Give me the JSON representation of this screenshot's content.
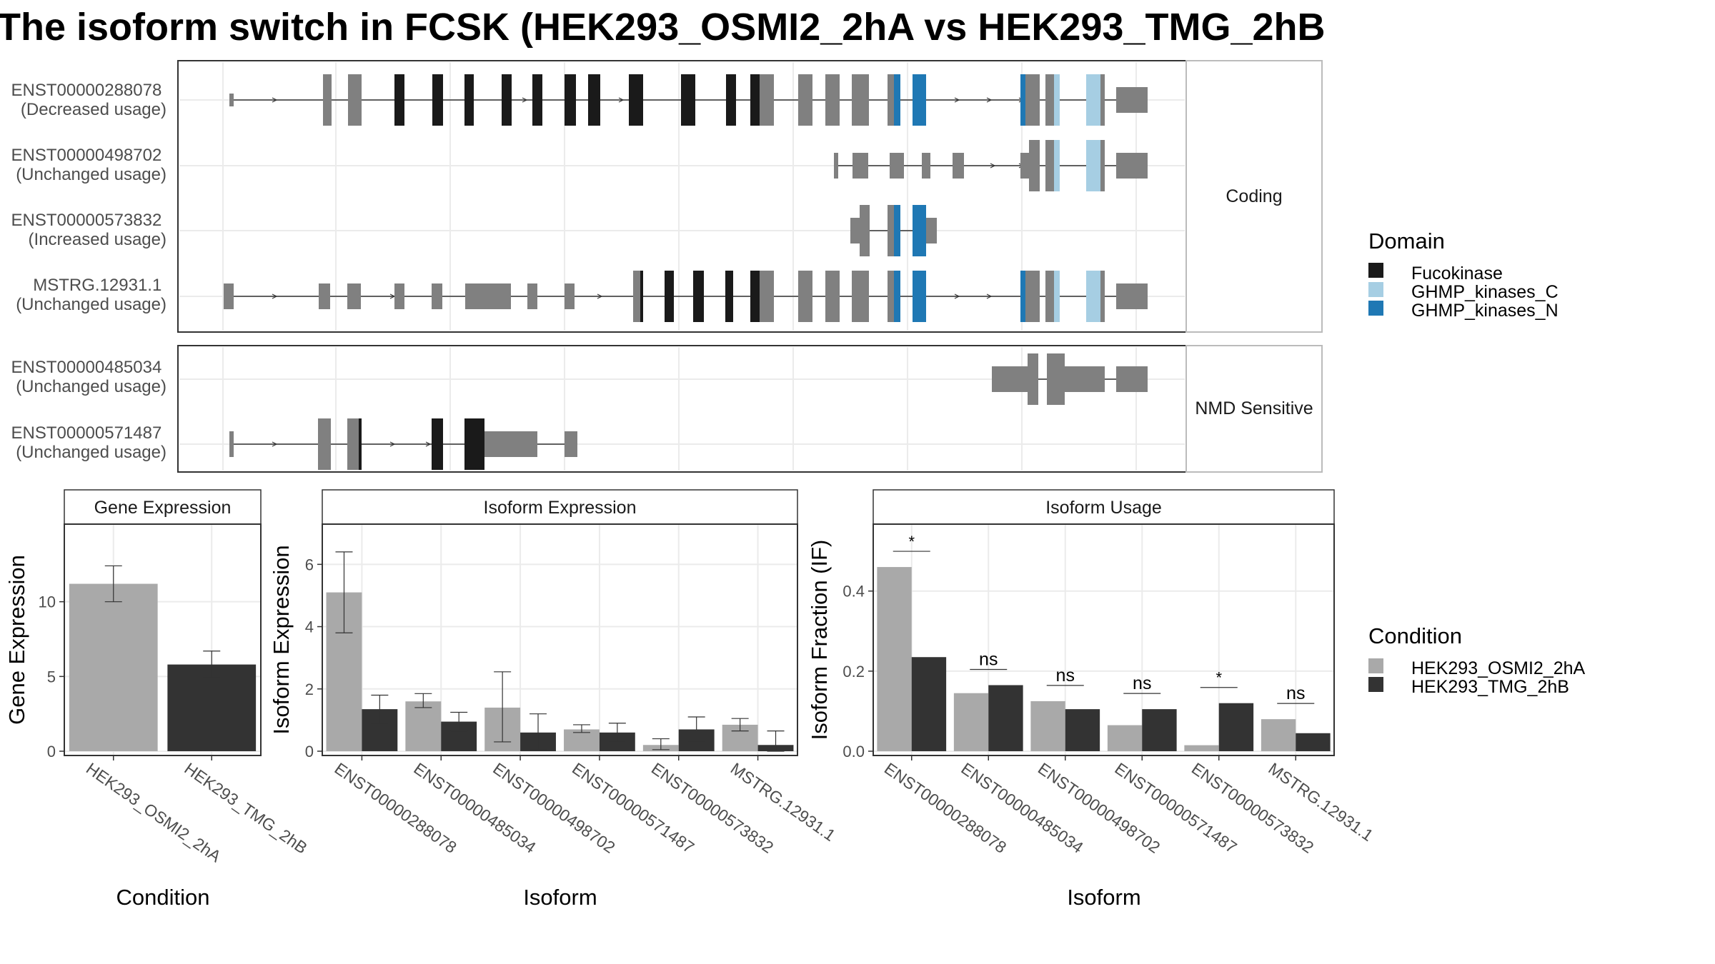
{
  "title": "The isoform switch in FCSK (HEK293_OSMI2_2hA vs HEK293_TMG_2hB",
  "colors": {
    "fucokinase": "#1a1a1a",
    "ghmp_c": "#a6cee3",
    "ghmp_n": "#1f78b4",
    "exon": "#808080",
    "cond1": "#a9a9a9",
    "cond2": "#333333"
  },
  "structure": {
    "facets": [
      "Coding",
      "NMD Sensitive"
    ],
    "transcripts": [
      {
        "id": "ENST00000288078",
        "usage": "(Decreased usage)",
        "facet": "Coding"
      },
      {
        "id": "ENST00000498702",
        "usage": "(Unchanged usage)",
        "facet": "Coding"
      },
      {
        "id": "ENST00000573832",
        "usage": "(Increased usage)",
        "facet": "Coding"
      },
      {
        "id": "MSTRG.12931.1",
        "usage": "(Unchanged usage)",
        "facet": "Coding"
      },
      {
        "id": "ENST00000485034",
        "usage": "(Unchanged usage)",
        "facet": "NMD Sensitive"
      },
      {
        "id": "ENST00000571487",
        "usage": "(Unchanged usage)",
        "facet": "NMD Sensitive"
      }
    ]
  },
  "legend_domain": {
    "title": "Domain",
    "items": [
      {
        "label": "Fucokinase",
        "color": "#1a1a1a"
      },
      {
        "label": "GHMP_kinases_C",
        "color": "#a6cee3"
      },
      {
        "label": "GHMP_kinases_N",
        "color": "#1f78b4"
      }
    ]
  },
  "legend_condition": {
    "title": "Condition",
    "items": [
      {
        "label": "HEK293_OSMI2_2hA",
        "color": "#a9a9a9"
      },
      {
        "label": "HEK293_TMG_2hB",
        "color": "#333333"
      }
    ]
  },
  "chart_data": [
    {
      "type": "bar",
      "title": "Gene Expression",
      "xlabel": "Condition",
      "ylabel": "Gene Expression",
      "ylim": [
        0,
        15
      ],
      "yticks": [
        0,
        5,
        10
      ],
      "categories": [
        "HEK293_OSMI2_2hA",
        "HEK293_TMG_2hB"
      ],
      "values": [
        11.2,
        5.8
      ],
      "errors": [
        [
          10.0,
          12.4
        ],
        [
          4.9,
          6.7
        ]
      ]
    },
    {
      "type": "bar",
      "title": "Isoform Expression",
      "xlabel": "Isoform",
      "ylabel": "Isoform Expression",
      "ylim": [
        0,
        7.2
      ],
      "yticks": [
        0,
        2,
        4,
        6
      ],
      "categories": [
        "ENST00000288078",
        "ENST00000485034",
        "ENST00000498702",
        "ENST00000571487",
        "ENST00000573832",
        "MSTRG.12931.1"
      ],
      "series": [
        {
          "name": "HEK293_OSMI2_2hA",
          "values": [
            5.1,
            1.6,
            1.4,
            0.7,
            0.2,
            0.85
          ],
          "errors": [
            [
              3.8,
              6.4
            ],
            [
              1.4,
              1.85
            ],
            [
              0.3,
              2.55
            ],
            [
              0.6,
              0.85
            ],
            [
              0.05,
              0.4
            ],
            [
              0.65,
              1.05
            ]
          ]
        },
        {
          "name": "HEK293_TMG_2hB",
          "values": [
            1.35,
            0.95,
            0.6,
            0.6,
            0.7,
            0.2
          ],
          "errors": [
            [
              0.9,
              1.8
            ],
            [
              0.65,
              1.25
            ],
            [
              0.05,
              1.2
            ],
            [
              0.3,
              0.9
            ],
            [
              0.3,
              1.1
            ],
            [
              0.0,
              0.65
            ]
          ]
        }
      ]
    },
    {
      "type": "bar",
      "title": "Isoform Usage",
      "xlabel": "Isoform",
      "ylabel": "Isoform Fraction (IF)",
      "ylim": [
        0,
        0.56
      ],
      "yticks": [
        "0.0",
        "0.2",
        "0.4"
      ],
      "categories": [
        "ENST00000288078",
        "ENST00000485034",
        "ENST00000498702",
        "ENST00000571487",
        "ENST00000573832",
        "MSTRG.12931.1"
      ],
      "series": [
        {
          "name": "HEK293_OSMI2_2hA",
          "values": [
            0.46,
            0.145,
            0.125,
            0.065,
            0.015,
            0.08
          ]
        },
        {
          "name": "HEK293_TMG_2hB",
          "values": [
            0.235,
            0.165,
            0.105,
            0.105,
            0.12,
            0.045
          ]
        }
      ],
      "significance": [
        "*",
        "ns",
        "ns",
        "ns",
        "*",
        "ns"
      ]
    }
  ]
}
